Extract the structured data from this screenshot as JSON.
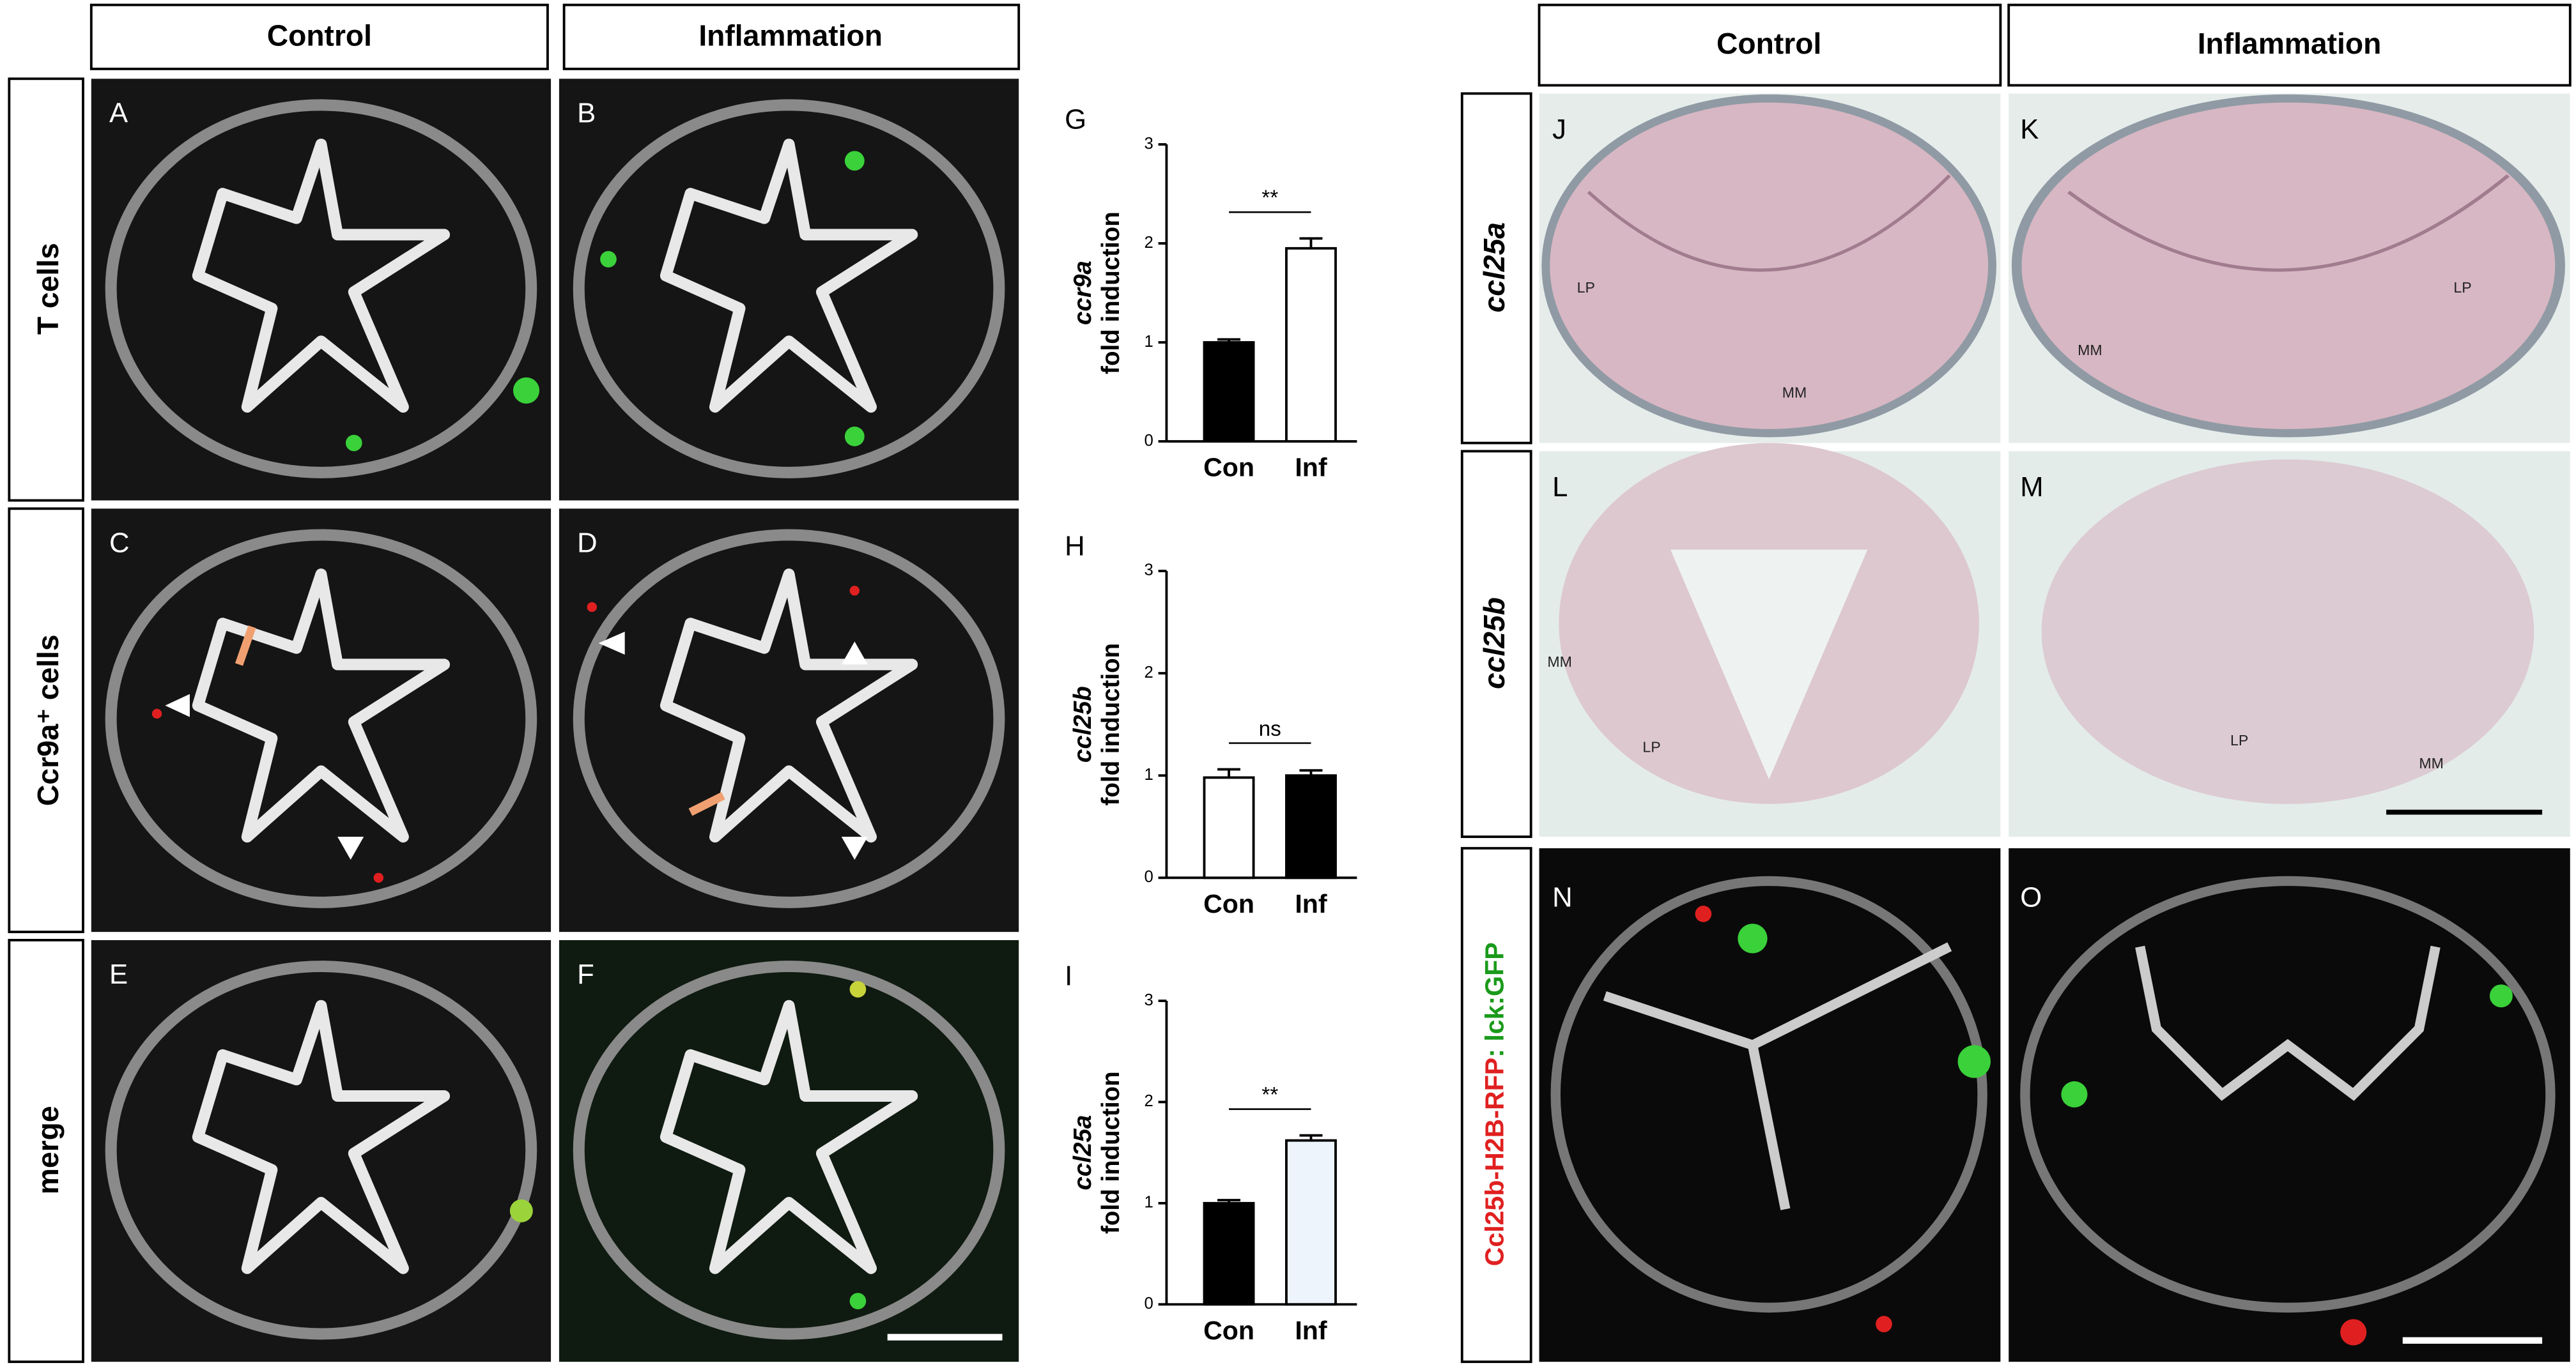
{
  "figure": {
    "left_headers": [
      "Control",
      "Inflammation"
    ],
    "left_row_labels": [
      "T cells",
      "Ccr9a⁺ cells",
      "merge"
    ],
    "panel_letters": [
      "A",
      "B",
      "C",
      "D",
      "E",
      "F",
      "J",
      "K",
      "L",
      "M",
      "N",
      "O"
    ],
    "right_headers": [
      "Control",
      "Inflammation"
    ],
    "right_row_labels": [
      "ccl25a",
      "ccl25b"
    ],
    "reporter_label": [
      "Ccl25b-H2B-RFP",
      ": ",
      "lck:GFP"
    ],
    "histology_labels": [
      [
        "LP",
        "MM"
      ],
      [
        "MM",
        "LP"
      ],
      [
        "MM",
        "LP"
      ],
      [
        "LP",
        "MM"
      ]
    ]
  },
  "chart_data": [
    {
      "type": "bar",
      "panel": "G",
      "ylabel_gene": "ccr9a",
      "ylabel": "fold induction",
      "categories": [
        "Con",
        "Inf"
      ],
      "values": [
        1.0,
        1.95
      ],
      "errors": [
        0.03,
        0.1
      ],
      "colors": [
        "#000000",
        "#ffffff"
      ],
      "ylim": [
        0,
        3
      ],
      "yticks": [
        0,
        1,
        2,
        3
      ],
      "significance": "**"
    },
    {
      "type": "bar",
      "panel": "H",
      "ylabel_gene": "ccl25b",
      "ylabel": "fold induction",
      "categories": [
        "Con",
        "Inf"
      ],
      "values": [
        0.98,
        1.0
      ],
      "errors": [
        0.08,
        0.05
      ],
      "colors": [
        "#ffffff",
        "#000000"
      ],
      "ylim": [
        0,
        3
      ],
      "yticks": [
        0,
        1,
        2,
        3
      ],
      "significance": "ns"
    },
    {
      "type": "bar",
      "panel": "I",
      "ylabel_gene": "ccl25a",
      "ylabel": "fold induction",
      "categories": [
        "Con",
        "Inf"
      ],
      "values": [
        1.0,
        1.62
      ],
      "errors": [
        0.03,
        0.05
      ],
      "colors": [
        "#000000",
        "#eef4fb"
      ],
      "ylim": [
        0,
        3
      ],
      "yticks": [
        0,
        1,
        2,
        3
      ],
      "significance": "**"
    }
  ]
}
